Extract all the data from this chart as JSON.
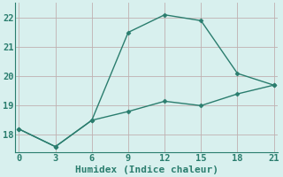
{
  "line1_x": [
    0,
    3,
    6,
    9,
    12,
    15,
    18,
    21
  ],
  "line1_y": [
    18.2,
    17.6,
    18.5,
    21.5,
    22.1,
    21.9,
    20.1,
    19.7
  ],
  "line2_x": [
    0,
    3,
    6,
    9,
    12,
    15,
    18,
    21
  ],
  "line2_y": [
    18.2,
    17.6,
    18.5,
    18.8,
    19.15,
    19.0,
    19.4,
    19.7
  ],
  "line_color": "#2a7d6e",
  "bg_color": "#d8f0ee",
  "grid_color": "#c0b0b0",
  "xlabel": "Humidex (Indice chaleur)",
  "xlim": [
    -0.3,
    21.3
  ],
  "ylim": [
    17.4,
    22.5
  ],
  "xticks": [
    0,
    3,
    6,
    9,
    12,
    15,
    18,
    21
  ],
  "yticks": [
    18,
    19,
    20,
    21,
    22
  ],
  "marker": "D",
  "markersize": 2.5,
  "linewidth": 1.0,
  "xlabel_fontsize": 8,
  "tick_fontsize": 7.5
}
